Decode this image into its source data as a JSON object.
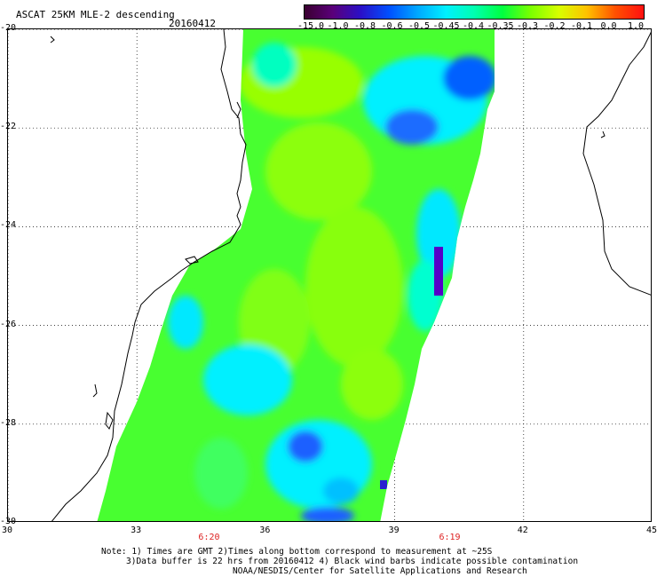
{
  "header": {
    "title": "ASCAT 25KM MLE-2 descending",
    "date": "20160412"
  },
  "colorbar": {
    "labels": [
      "-15.0",
      "-1.0",
      "-0.8",
      "-0.6",
      "-0.5",
      "-0.45",
      "-0.4",
      "-0.35",
      "-0.3",
      "-0.2",
      "-0.1",
      "0.0",
      "1.0"
    ],
    "colors": [
      "#3a0030",
      "#5a007a",
      "#2a10c8",
      "#0050ff",
      "#00a8ff",
      "#00f0ff",
      "#00ffb0",
      "#00ff40",
      "#7aff00",
      "#d8ff00",
      "#ffc000",
      "#ff5000",
      "#ff1010"
    ]
  },
  "map": {
    "lat_labels": [
      "-20",
      "-22",
      "-24",
      "-26",
      "-28",
      "-30"
    ],
    "lon_labels": [
      "30",
      "33",
      "36",
      "39",
      "42",
      "45"
    ],
    "time_labels": [
      {
        "text": "6:20",
        "lon": 34.7
      },
      {
        "text": "6:19",
        "lon": 40.3
      }
    ],
    "lat_range": [
      -30,
      -20
    ],
    "lon_range": [
      30,
      45
    ]
  },
  "notes": {
    "line1": "Note: 1) Times are GMT 2)Times along bottom correspond to measurement at ~25S",
    "line2": "3)Data buffer is 22 hrs from 20160412 4) Black wind barbs indicate possible contamination",
    "line3": "NOAA/NESDIS/Center for Satellite Applications and Research"
  }
}
